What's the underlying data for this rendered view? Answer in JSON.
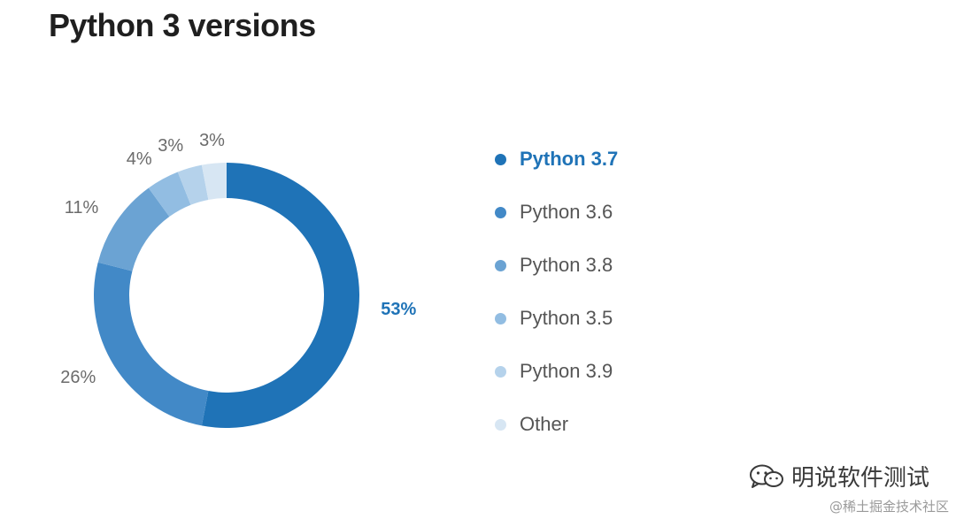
{
  "chart_data": {
    "type": "pie",
    "donut": true,
    "title": "Python 3 versions",
    "categories": [
      "Python 3.7",
      "Python 3.6",
      "Python 3.8",
      "Python 3.5",
      "Python 3.9",
      "Other"
    ],
    "values": [
      53,
      26,
      11,
      4,
      3,
      3
    ],
    "value_labels": [
      "53%",
      "26%",
      "11%",
      "4%",
      "3%",
      "3%"
    ],
    "colors": [
      "#1f73b7",
      "#4289c7",
      "#6ba3d3",
      "#92bde2",
      "#b5d2eb",
      "#d7e6f3"
    ],
    "highlighted": "Python 3.7",
    "highlight_color": "#1f73b7",
    "legend_placement": "right"
  },
  "watermark": {
    "icon": "wechat-icon",
    "text": "明说软件测试"
  },
  "source": "@稀土掘金技术社区"
}
